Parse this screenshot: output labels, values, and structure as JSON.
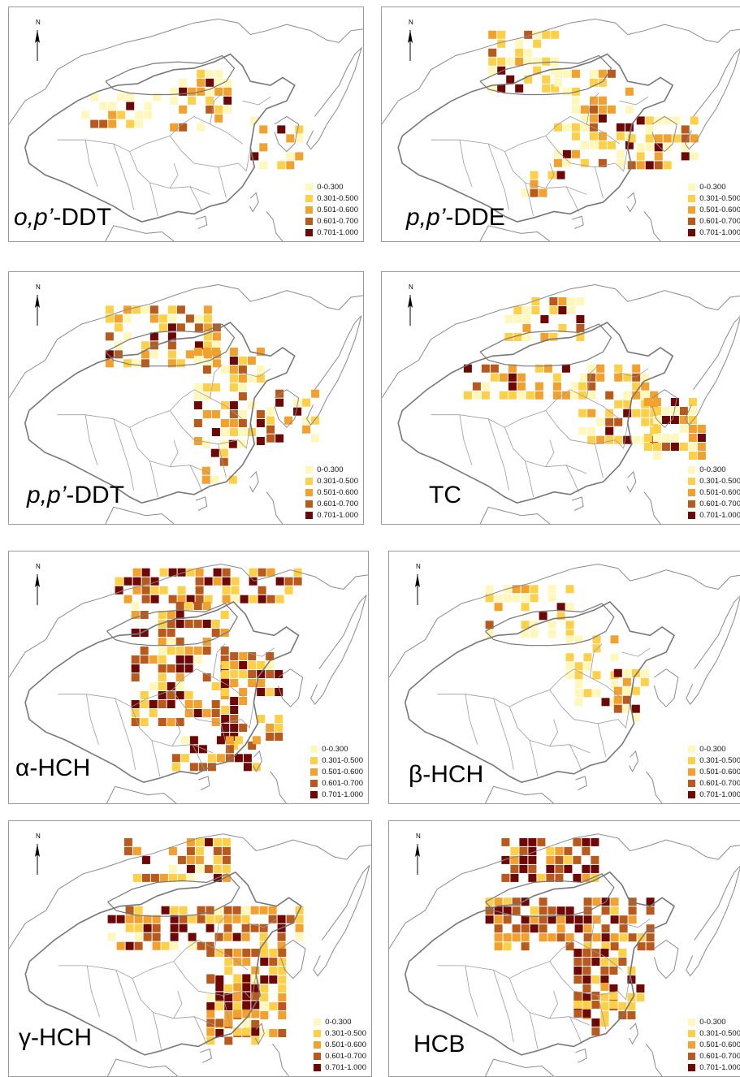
{
  "legend": {
    "classes": [
      {
        "label": "0-0.300",
        "color": "#fff7bc"
      },
      {
        "label": "0.301-0.500",
        "color": "#fdd049"
      },
      {
        "label": "0.501-0.600",
        "color": "#f2a02e"
      },
      {
        "label": "0.601-0.700",
        "color": "#b85a1d"
      },
      {
        "label": "0.701-1.000",
        "color": "#6e0806"
      }
    ]
  },
  "north_label": "N",
  "panels": [
    {
      "title_html": "<i>o,p’</i>-DDT"
    },
    {
      "title_html": "<i>p,p’</i>-DDE"
    },
    {
      "title_html": "<i>p,p’</i>-DDT"
    },
    {
      "title_html": "TC"
    },
    {
      "title_html": "α-HCH"
    },
    {
      "title_html": "β-HCH"
    },
    {
      "title_html": "γ-HCH"
    },
    {
      "title_html": "HCB"
    }
  ]
}
